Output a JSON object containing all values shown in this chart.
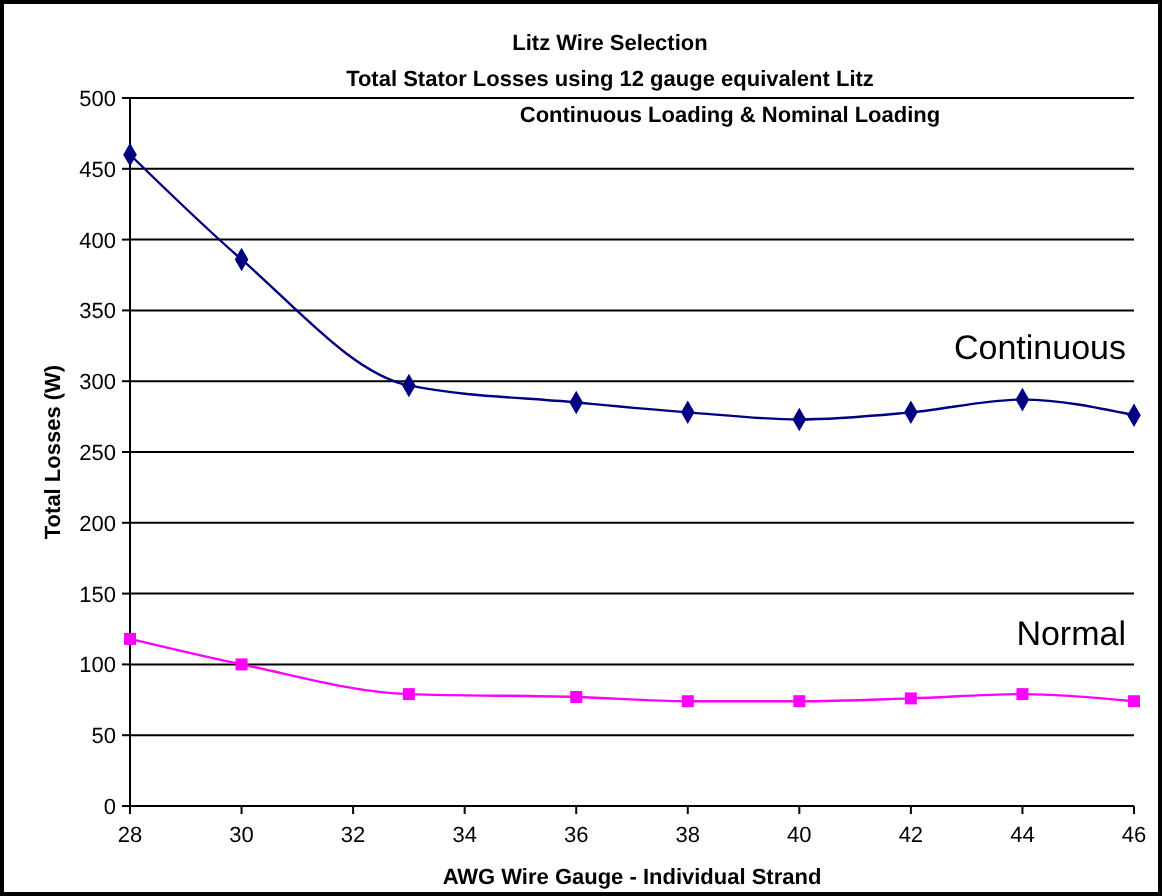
{
  "chart_data": {
    "type": "line",
    "title": "Litz Wire Selection",
    "subtitle": "Total Stator Losses using 12 gauge equivalent Litz\nContinuous Loading & Nominal Loading",
    "xlabel": "AWG Wire Gauge - Individual Strand",
    "ylabel": "Total Losses (W)",
    "x": [
      28,
      30,
      33,
      36,
      38,
      40,
      42,
      44,
      46
    ],
    "series": [
      {
        "name": "Continuous",
        "color": "#000080",
        "marker": "diamond",
        "values": [
          460,
          386,
          297,
          285,
          278,
          273,
          278,
          287,
          276
        ]
      },
      {
        "name": "Normal",
        "color": "#ff00ff",
        "marker": "square",
        "values": [
          118,
          100,
          79,
          77,
          74,
          74,
          76,
          79,
          74
        ]
      }
    ],
    "xlim": [
      28,
      46
    ],
    "xticks": [
      28,
      30,
      32,
      34,
      36,
      38,
      40,
      42,
      44,
      46
    ],
    "ylim": [
      0,
      500
    ],
    "yticks": [
      0,
      50,
      100,
      150,
      200,
      250,
      300,
      350,
      400,
      450,
      500
    ],
    "grid": "y",
    "legend": false
  }
}
